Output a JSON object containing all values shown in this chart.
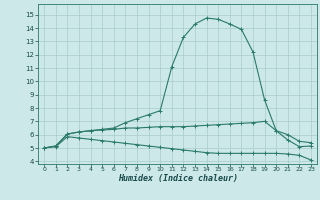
{
  "bg_color": "#cce8e8",
  "grid_color": "#aacccc",
  "line_color": "#2a7a6a",
  "xlabel": "Humidex (Indice chaleur)",
  "xlim": [
    -0.5,
    23.5
  ],
  "ylim": [
    3.8,
    15.8
  ],
  "yticks": [
    4,
    5,
    6,
    7,
    8,
    9,
    10,
    11,
    12,
    13,
    14,
    15
  ],
  "xticks": [
    0,
    1,
    2,
    3,
    4,
    5,
    6,
    7,
    8,
    9,
    10,
    11,
    12,
    13,
    14,
    15,
    16,
    17,
    18,
    19,
    20,
    21,
    22,
    23
  ],
  "curve_top": [
    5.0,
    5.15,
    6.05,
    6.2,
    6.3,
    6.4,
    6.5,
    6.9,
    7.2,
    7.5,
    7.8,
    11.1,
    13.3,
    14.3,
    14.75,
    14.65,
    14.3,
    13.9,
    12.2,
    8.6,
    6.3,
    5.6,
    5.1,
    5.15
  ],
  "curve_mid": [
    5.0,
    5.15,
    6.05,
    6.2,
    6.3,
    6.35,
    6.4,
    6.5,
    6.5,
    6.55,
    6.6,
    6.6,
    6.6,
    6.65,
    6.7,
    6.75,
    6.8,
    6.85,
    6.9,
    7.0,
    6.3,
    6.0,
    5.5,
    5.4
  ],
  "curve_bot": [
    5.0,
    5.1,
    5.85,
    5.75,
    5.65,
    5.55,
    5.45,
    5.35,
    5.25,
    5.15,
    5.05,
    4.95,
    4.85,
    4.75,
    4.65,
    4.6,
    4.6,
    4.6,
    4.6,
    4.6,
    4.6,
    4.55,
    4.45,
    4.1
  ]
}
